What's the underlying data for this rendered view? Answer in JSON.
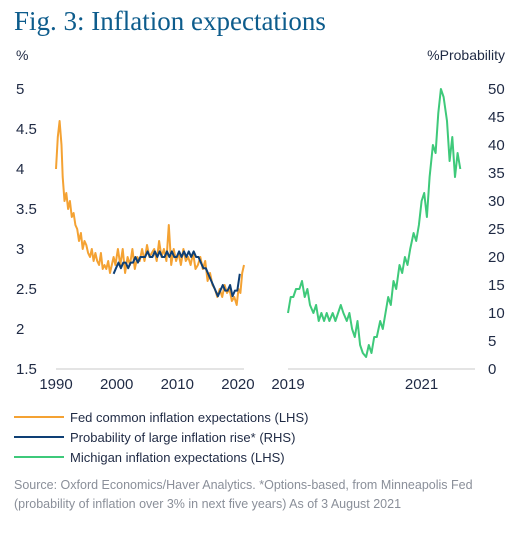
{
  "title": "Fig. 3: Inflation expectations",
  "chart_data": [
    {
      "type": "line",
      "left_unit": "%",
      "x_ticks": [
        "1990",
        "2000",
        "2010",
        "2020"
      ],
      "xlim": [
        1990,
        2021
      ],
      "y_ticks": [
        "5",
        "4.5",
        "4",
        "3.5",
        "3",
        "2.5",
        "2",
        "1.5"
      ],
      "ylim": [
        1.5,
        5
      ],
      "series": [
        {
          "name": "Fed common inflation expectations (LHS)",
          "color": "#f4a233",
          "axis": "left",
          "x": [
            1990.0,
            1990.3,
            1990.6,
            1990.9,
            1991.1,
            1991.4,
            1991.7,
            1992.0,
            1992.3,
            1992.6,
            1992.9,
            1993.2,
            1993.5,
            1993.8,
            1994.1,
            1994.4,
            1994.7,
            1995.0,
            1995.3,
            1995.6,
            1995.9,
            1996.2,
            1996.5,
            1996.8,
            1997.1,
            1997.4,
            1997.7,
            1998.0,
            1998.3,
            1998.6,
            1998.9,
            1999.2,
            1999.5,
            1999.8,
            2000.2,
            2000.6,
            2001.0,
            2001.4,
            2001.8,
            2002.2,
            2002.6,
            2003.0,
            2003.4,
            2003.8,
            2004.2,
            2004.6,
            2005.0,
            2005.4,
            2005.8,
            2006.2,
            2006.6,
            2007.0,
            2007.4,
            2007.8,
            2008.2,
            2008.6,
            2009.0,
            2009.4,
            2009.8,
            2010.2,
            2010.6,
            2011.0,
            2011.4,
            2011.8,
            2012.2,
            2012.6,
            2013.0,
            2013.4,
            2013.8,
            2014.2,
            2014.6,
            2015.0,
            2015.4,
            2015.8,
            2016.2,
            2016.6,
            2017.0,
            2017.4,
            2017.8,
            2018.2,
            2018.6,
            2019.0,
            2019.4,
            2019.8,
            2020.1,
            2020.4,
            2020.7,
            2021.0
          ],
          "y": [
            4.0,
            4.4,
            4.6,
            4.3,
            3.9,
            3.6,
            3.7,
            3.5,
            3.6,
            3.4,
            3.45,
            3.3,
            3.25,
            3.1,
            3.2,
            3.0,
            3.1,
            3.05,
            2.95,
            2.9,
            3.0,
            2.85,
            2.95,
            2.85,
            2.8,
            2.95,
            2.75,
            2.8,
            2.75,
            2.85,
            2.7,
            2.8,
            2.9,
            2.8,
            3.0,
            2.8,
            3.0,
            2.7,
            2.9,
            2.8,
            3.0,
            2.75,
            2.9,
            2.85,
            3.0,
            2.85,
            3.05,
            2.9,
            2.95,
            3.0,
            2.85,
            3.1,
            2.9,
            3.0,
            2.85,
            3.3,
            2.8,
            3.0,
            2.85,
            2.95,
            2.8,
            3.0,
            2.85,
            2.9,
            2.8,
            2.95,
            2.75,
            2.8,
            2.9,
            2.75,
            2.85,
            2.6,
            2.7,
            2.55,
            2.5,
            2.4,
            2.5,
            2.4,
            2.55,
            2.45,
            2.5,
            2.35,
            2.4,
            2.3,
            2.5,
            2.45,
            2.7,
            2.8
          ]
        },
        {
          "name": "Probability of large inflation rise* (RHS)",
          "color": "#0e3f75",
          "axis": "right",
          "x": [
            1999.5,
            1999.9,
            2000.3,
            2000.7,
            2001.1,
            2001.5,
            2001.9,
            2002.3,
            2002.7,
            2003.1,
            2003.5,
            2003.9,
            2004.3,
            2004.7,
            2005.1,
            2005.5,
            2005.9,
            2006.3,
            2006.7,
            2007.1,
            2007.5,
            2007.9,
            2008.3,
            2008.7,
            2009.1,
            2009.5,
            2009.9,
            2010.3,
            2010.7,
            2011.1,
            2011.5,
            2011.9,
            2012.3,
            2012.7,
            2013.1,
            2013.5,
            2013.9,
            2014.3,
            2014.7,
            2015.1,
            2015.5,
            2015.9,
            2016.3,
            2016.7,
            2017.1,
            2017.5,
            2017.9,
            2018.3,
            2018.7,
            2019.1,
            2019.5,
            2019.9,
            2020.3
          ],
          "y": [
            17,
            18,
            19,
            18,
            19,
            19,
            18,
            19,
            19,
            20,
            19,
            20,
            20,
            20,
            21,
            20,
            20,
            21,
            20,
            21,
            20,
            20,
            21,
            20,
            21,
            20,
            20,
            21,
            20,
            21,
            20,
            21,
            20,
            21,
            20,
            20,
            19,
            18,
            18,
            17,
            16,
            15,
            14,
            13,
            14,
            15,
            14,
            14,
            15,
            13,
            14,
            14,
            17
          ]
        }
      ]
    },
    {
      "type": "line",
      "right_unit": "%Probability",
      "x_ticks": [
        "2019",
        "2021"
      ],
      "xlim": [
        2019,
        2021.8
      ],
      "y_ticks": [
        "50",
        "45",
        "40",
        "35",
        "30",
        "25",
        "20",
        "15",
        "10",
        "5",
        "0"
      ],
      "ylim": [
        0,
        50
      ],
      "series": [
        {
          "name": "Michigan inflation expectations (LHS)",
          "color": "#3ec97a",
          "axis": "left",
          "x": [
            2019.0,
            2019.04,
            2019.08,
            2019.12,
            2019.17,
            2019.21,
            2019.25,
            2019.29,
            2019.33,
            2019.38,
            2019.42,
            2019.46,
            2019.5,
            2019.54,
            2019.58,
            2019.62,
            2019.67,
            2019.71,
            2019.75,
            2019.79,
            2019.83,
            2019.88,
            2019.92,
            2019.96,
            2020.0,
            2020.04,
            2020.08,
            2020.12,
            2020.17,
            2020.21,
            2020.25,
            2020.29,
            2020.33,
            2020.38,
            2020.42,
            2020.46,
            2020.5,
            2020.54,
            2020.58,
            2020.62,
            2020.67,
            2020.71,
            2020.75,
            2020.79,
            2020.83,
            2020.88,
            2020.92,
            2020.96,
            2021.0,
            2021.04,
            2021.08,
            2021.12,
            2021.17,
            2021.21,
            2021.25,
            2021.29,
            2021.33,
            2021.38,
            2021.42,
            2021.46,
            2021.5,
            2021.54,
            2021.58
          ],
          "y": [
            2.2,
            2.4,
            2.4,
            2.5,
            2.5,
            2.6,
            2.4,
            2.5,
            2.3,
            2.2,
            2.3,
            2.1,
            2.2,
            2.1,
            2.2,
            2.1,
            2.2,
            2.1,
            2.2,
            2.3,
            2.2,
            2.1,
            2.2,
            2.0,
            1.9,
            2.1,
            1.8,
            1.7,
            1.65,
            1.8,
            1.7,
            1.9,
            1.9,
            2.1,
            2.0,
            2.2,
            2.4,
            2.3,
            2.6,
            2.5,
            2.8,
            2.7,
            2.9,
            2.8,
            3.0,
            3.2,
            3.1,
            3.3,
            3.6,
            3.7,
            3.4,
            3.9,
            4.3,
            4.2,
            4.7,
            5.0,
            4.9,
            4.6,
            4.1,
            4.4,
            3.9,
            4.2,
            4.0
          ]
        }
      ]
    }
  ],
  "legend": [
    {
      "label": "Fed common inflation expectations (LHS)",
      "color": "#f4a233"
    },
    {
      "label": "Probability of large inflation rise* (RHS)",
      "color": "#0e3f75"
    },
    {
      "label": "Michigan inflation expectations (LHS)",
      "color": "#3ec97a"
    }
  ],
  "source": "Source: Oxford Economics/Haver Analytics. *Options-based, from Minneapolis Fed (probability of inflation over 3% in next five years) As of 3 August 2021"
}
